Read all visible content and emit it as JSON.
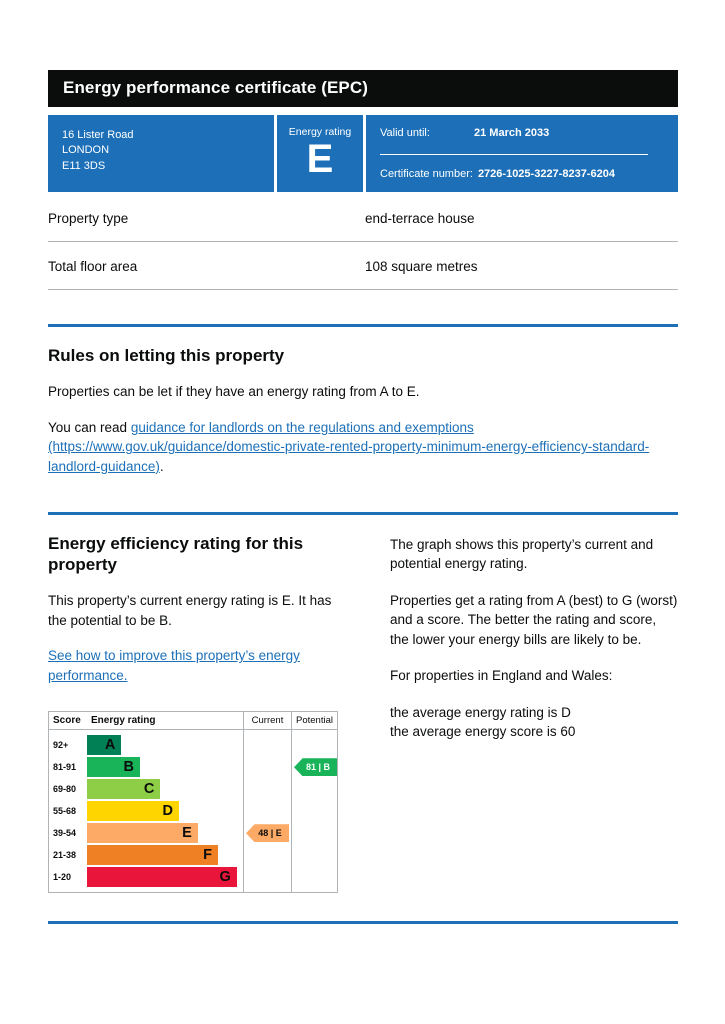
{
  "page": {
    "title": "Energy performance certificate (EPC)"
  },
  "banner": {
    "address": {
      "line1": "16 Lister Road",
      "line2": "LONDON",
      "line3": "E11 3DS"
    },
    "rating_label": "Energy rating",
    "rating_value": "E",
    "valid_until_label": "Valid until:",
    "valid_until_value": "21 March 2033",
    "cert_label": "Certificate number:",
    "cert_value": "2726-1025-3227-8237-6204"
  },
  "summary": {
    "rows": [
      {
        "label": "Property type",
        "value": "end-terrace house"
      },
      {
        "label": "Total floor area",
        "value": "108 square metres"
      }
    ]
  },
  "rules": {
    "heading": "Rules on letting this property",
    "para1": "Properties can be let if they have an energy rating from A to E.",
    "para2_prefix": "You can read ",
    "para2_link": "guidance for landlords on the regulations and exemptions (https://www.gov.uk/guidance/domestic-private-rented-property-minimum-energy-efficiency-standard-landlord-guidance)",
    "para2_suffix": "."
  },
  "efficiency": {
    "heading": "Energy efficiency rating for this property",
    "para1": "This property’s current energy rating is E. It has the potential to be B.",
    "improve_link": "See how to improve this property’s energy performance.",
    "right": {
      "para1": "The graph shows this property’s current and potential energy rating.",
      "para2": "Properties get a rating from A (best) to G (worst) and a score. The better the rating and score, the lower your energy bills are likely to be.",
      "para3": "For properties in England and Wales:",
      "para4_line1": "the average energy rating is D",
      "para4_line2": "the average energy score is 60"
    }
  },
  "chart_data": {
    "type": "bar",
    "title": "Energy efficiency rating bands",
    "headers": {
      "score": "Score",
      "rating": "Energy rating",
      "current": "Current",
      "potential": "Potential"
    },
    "bands": [
      {
        "score": "92+",
        "letter": "A",
        "color": "#008054",
        "width_pct": 22
      },
      {
        "score": "81-91",
        "letter": "B",
        "color": "#19b459",
        "width_pct": 34
      },
      {
        "score": "69-80",
        "letter": "C",
        "color": "#8dce46",
        "width_pct": 47
      },
      {
        "score": "55-68",
        "letter": "D",
        "color": "#ffd500",
        "width_pct": 59
      },
      {
        "score": "39-54",
        "letter": "E",
        "color": "#fcaa65",
        "width_pct": 71
      },
      {
        "score": "21-38",
        "letter": "F",
        "color": "#ef8023",
        "width_pct": 84
      },
      {
        "score": "1-20",
        "letter": "G",
        "color": "#e9153b",
        "width_pct": 96
      }
    ],
    "current": {
      "score": 48,
      "letter": "E",
      "label": "48 | E",
      "color": "#fcaa65",
      "text_color": "#0b0c0c",
      "band_index": 4
    },
    "potential": {
      "score": 81,
      "letter": "B",
      "label": "81 | B",
      "color": "#19b459",
      "text_color": "#ffffff",
      "band_index": 1
    }
  },
  "colors": {
    "govuk_blue": "#1d70b8",
    "header_black": "#0b0c0c",
    "link_blue": "#1d70b8",
    "border_grey": "#b1b4b6"
  }
}
